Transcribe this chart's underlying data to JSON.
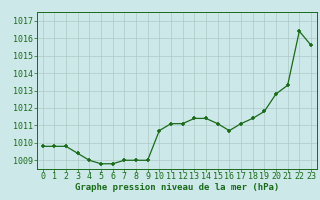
{
  "x": [
    0,
    1,
    2,
    3,
    4,
    5,
    6,
    7,
    8,
    9,
    10,
    11,
    12,
    13,
    14,
    15,
    16,
    17,
    18,
    19,
    20,
    21,
    22,
    23
  ],
  "y": [
    1009.8,
    1009.8,
    1009.8,
    1009.4,
    1009.0,
    1008.8,
    1008.8,
    1009.0,
    1009.0,
    1009.0,
    1010.7,
    1011.1,
    1011.1,
    1011.4,
    1011.4,
    1011.1,
    1010.7,
    1011.1,
    1011.4,
    1011.8,
    1012.8,
    1013.3,
    1016.4,
    1015.6
  ],
  "xlabel": "Graphe pression niveau de la mer (hPa)",
  "ylim_min": 1008.5,
  "ylim_max": 1017.5,
  "xlim_min": -0.5,
  "xlim_max": 23.5,
  "yticks": [
    1009,
    1010,
    1011,
    1012,
    1013,
    1014,
    1015,
    1016,
    1017
  ],
  "xticks": [
    0,
    1,
    2,
    3,
    4,
    5,
    6,
    7,
    8,
    9,
    10,
    11,
    12,
    13,
    14,
    15,
    16,
    17,
    18,
    19,
    20,
    21,
    22,
    23
  ],
  "line_color": "#1a6b1a",
  "marker_color": "#1a6b1a",
  "bg_color": "#cce8e8",
  "grid_color": "#b0c8c8",
  "text_color": "#1a6b1a",
  "xlabel_fontsize": 6.5,
  "tick_fontsize": 6.0
}
